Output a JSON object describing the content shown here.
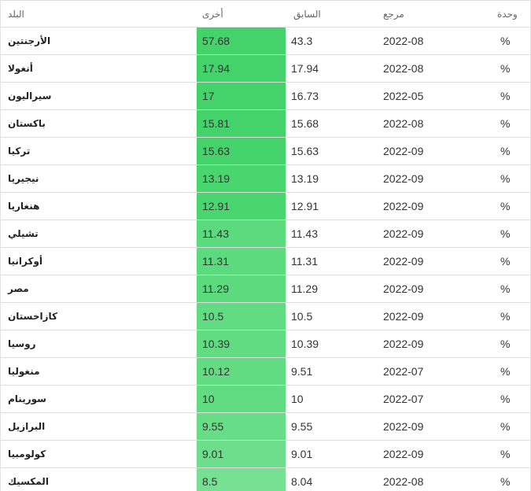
{
  "header": {
    "country": "البلد",
    "last": "أخرى",
    "previous": "السابق",
    "reference": "مرجع",
    "unit": "وحدة"
  },
  "colors": {
    "highest": "#3fd267",
    "high": "#4ad66f",
    "mid": "#5ad97c",
    "low": "#6fdf8c",
    "lowest": "#80e39a"
  },
  "rows": [
    {
      "country": "الأرجنتين",
      "last": "57.68",
      "previous": "43.3",
      "reference": "2022-08",
      "unit": "%",
      "color": "#44d36a"
    },
    {
      "country": "أنغولا",
      "last": "17.94",
      "previous": "17.94",
      "reference": "2022-08",
      "unit": "%",
      "color": "#44d36a"
    },
    {
      "country": "سيراليون",
      "last": "17",
      "previous": "16.73",
      "reference": "2022-05",
      "unit": "%",
      "color": "#44d36a"
    },
    {
      "country": "باكستان",
      "last": "15.81",
      "previous": "15.68",
      "reference": "2022-08",
      "unit": "%",
      "color": "#44d36a"
    },
    {
      "country": "تركيا",
      "last": "15.63",
      "previous": "15.63",
      "reference": "2022-09",
      "unit": "%",
      "color": "#44d36a"
    },
    {
      "country": "نيجيريا",
      "last": "13.19",
      "previous": "13.19",
      "reference": "2022-09",
      "unit": "%",
      "color": "#4ad66f"
    },
    {
      "country": "هنغاريا",
      "last": "12.91",
      "previous": "12.91",
      "reference": "2022-09",
      "unit": "%",
      "color": "#4ad66f"
    },
    {
      "country": "تشيلي",
      "last": "11.43",
      "previous": "11.43",
      "reference": "2022-09",
      "unit": "%",
      "color": "#5cda7e"
    },
    {
      "country": "أوكرانيا",
      "last": "11.31",
      "previous": "11.31",
      "reference": "2022-09",
      "unit": "%",
      "color": "#5cda7e"
    },
    {
      "country": "مصر",
      "last": "11.29",
      "previous": "11.29",
      "reference": "2022-09",
      "unit": "%",
      "color": "#5cda7e"
    },
    {
      "country": "كازاخستان",
      "last": "10.5",
      "previous": "10.5",
      "reference": "2022-09",
      "unit": "%",
      "color": "#62dc83"
    },
    {
      "country": "روسيا",
      "last": "10.39",
      "previous": "10.39",
      "reference": "2022-09",
      "unit": "%",
      "color": "#62dc83"
    },
    {
      "country": "منغوليا",
      "last": "10.12",
      "previous": "9.51",
      "reference": "2022-07",
      "unit": "%",
      "color": "#62dc83"
    },
    {
      "country": "سورينام",
      "last": "10",
      "previous": "10",
      "reference": "2022-07",
      "unit": "%",
      "color": "#62dc83"
    },
    {
      "country": "البرازيل",
      "last": "9.55",
      "previous": "9.55",
      "reference": "2022-09",
      "unit": "%",
      "color": "#68dd88"
    },
    {
      "country": "كولومبيا",
      "last": "9.01",
      "previous": "9.01",
      "reference": "2022-09",
      "unit": "%",
      "color": "#6ddf8c"
    },
    {
      "country": "المكسيك",
      "last": "8.5",
      "previous": "8.04",
      "reference": "2022-08",
      "unit": "%",
      "color": "#76e193"
    }
  ]
}
